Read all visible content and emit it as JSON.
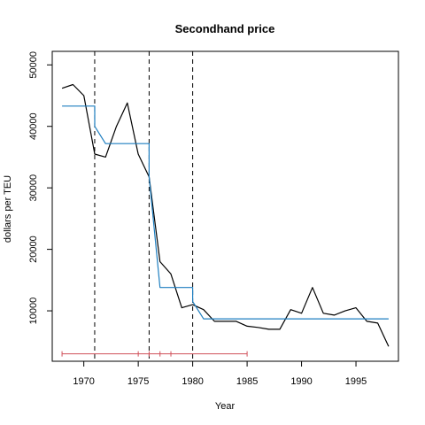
{
  "chart_data": {
    "type": "line",
    "title": "Secondhand price",
    "xlabel": "Year",
    "ylabel": "dollars per TEU",
    "xlim": [
      1967.1,
      1998.9
    ],
    "ylim": [
      1800,
      52200
    ],
    "x_ticks": [
      1970,
      1975,
      1980,
      1985,
      1990,
      1995
    ],
    "y_ticks": [
      10000,
      20000,
      30000,
      40000,
      50000
    ],
    "grid": false,
    "legend": "none",
    "series": [
      {
        "color": "#000000",
        "x": [
          1968,
          1969,
          1970,
          1971,
          1972,
          1973,
          1974,
          1975,
          1976,
          1977,
          1978,
          1979,
          1980,
          1981,
          1982,
          1983,
          1984,
          1985,
          1986,
          1987,
          1988,
          1989,
          1990,
          1991,
          1992,
          1993,
          1994,
          1995,
          1996,
          1997,
          1998
        ],
        "y": [
          46200,
          46800,
          45000,
          35500,
          35000,
          40000,
          43800,
          35500,
          31800,
          18000,
          16000,
          10500,
          11000,
          10200,
          8300,
          8300,
          8300,
          7500,
          7300,
          7000,
          7000,
          10200,
          9600,
          13800,
          9600,
          9300,
          10000,
          10500,
          8300,
          8000,
          4200
        ]
      },
      {
        "color": "#1f7fc0",
        "x": [
          1968,
          1971,
          1971,
          1972,
          1972,
          1976,
          1976,
          1977,
          1977,
          1980,
          1980,
          1981,
          1981,
          1998
        ],
        "y": [
          43300,
          43300,
          40000,
          37200,
          37200,
          37200,
          31800,
          13800,
          13800,
          13800,
          11500,
          8700,
          8700,
          8700
        ]
      }
    ],
    "breakpoints": [
      1971,
      1976,
      1980
    ],
    "breakpoint_color": "#000000",
    "interval": {
      "color": "#d0505a",
      "from": 1968,
      "to": 1985,
      "y": 3000,
      "marks": [
        1968,
        1975,
        1976,
        1977,
        1978,
        1985
      ]
    }
  }
}
